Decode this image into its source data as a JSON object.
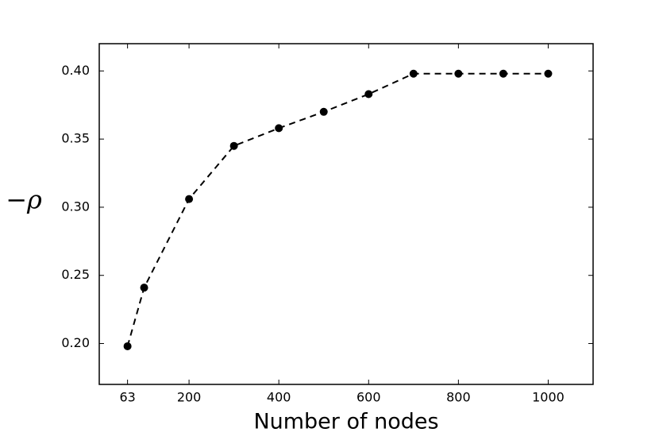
{
  "chart_data": {
    "type": "line",
    "x_label": "Number of nodes",
    "y_label": "−ρ",
    "x": [
      63,
      100,
      200,
      300,
      400,
      500,
      600,
      700,
      800,
      900,
      1000
    ],
    "series": [
      {
        "color": "#000000",
        "values": [
          0.198,
          0.241,
          0.306,
          0.345,
          0.358,
          0.37,
          0.383,
          0.398,
          0.398,
          0.398,
          0.398
        ]
      }
    ],
    "xlim": [
      0,
      1100
    ],
    "xticks": [
      63,
      200,
      400,
      600,
      800,
      1000
    ],
    "ylim": [
      0.17,
      0.42
    ],
    "yticks": [
      {
        "value": 0.2,
        "label": "0.20"
      },
      {
        "value": 0.25,
        "label": "0.25"
      },
      {
        "value": 0.3,
        "label": "0.30"
      },
      {
        "value": 0.35,
        "label": "0.35"
      },
      {
        "value": 0.4,
        "label": "0.40"
      }
    ],
    "grid": false
  }
}
